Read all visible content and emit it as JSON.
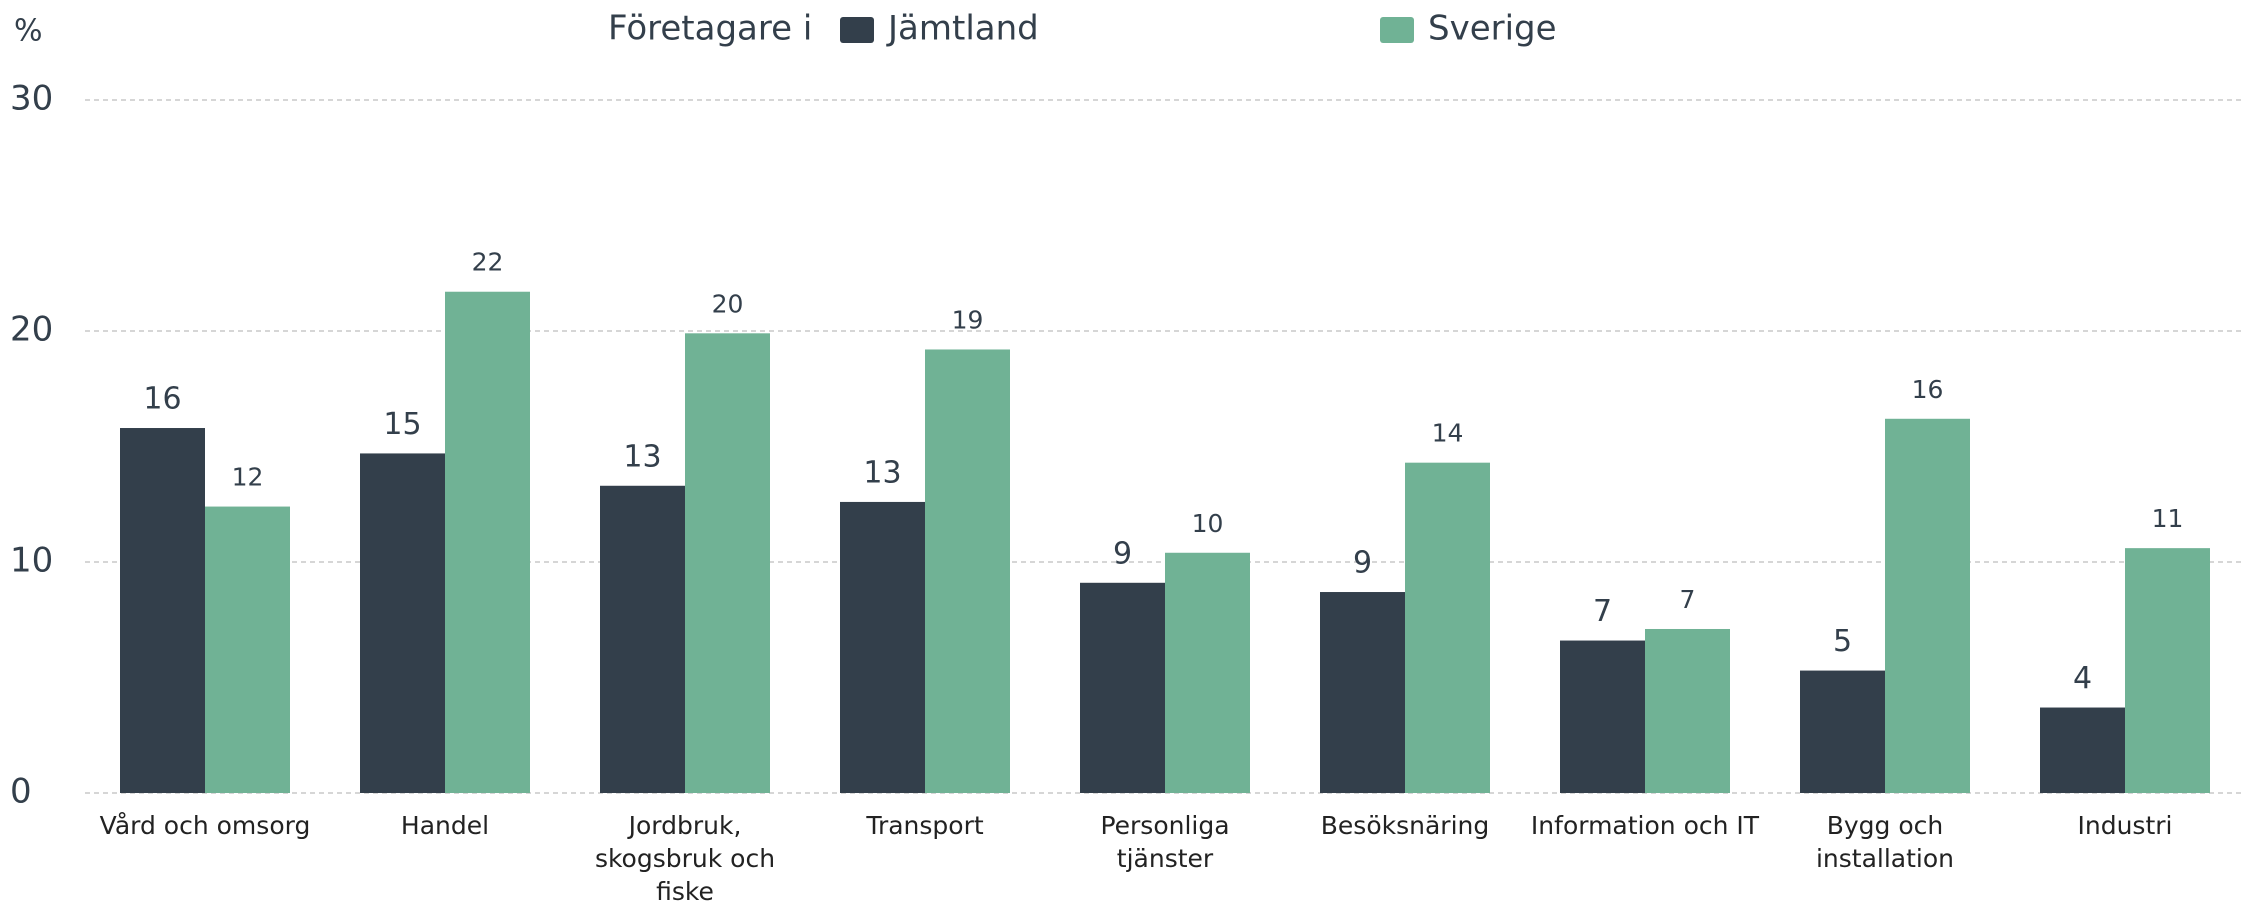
{
  "chart_data": {
    "type": "bar",
    "y_label": "%",
    "legend_title": "Företagare i",
    "categories": [
      "Vård och omsorg",
      "Handel",
      "Jordbruk, skogsbruk och fiske",
      "Transport",
      "Personliga tjänster",
      "Besöksnäring",
      "Information och IT",
      "Bygg och installation",
      "Industri"
    ],
    "series": [
      {
        "name": "Jämtland",
        "color": "#333f4b",
        "values": [
          15.8,
          14.7,
          13.3,
          12.6,
          9.1,
          8.7,
          6.6,
          5.3,
          3.7
        ],
        "value_labels": [
          "16",
          "15",
          "13",
          "13",
          "9",
          "9",
          "7",
          "5",
          "4"
        ]
      },
      {
        "name": "Sverige",
        "color": "#70b295",
        "values": [
          12.4,
          21.7,
          19.9,
          19.2,
          10.4,
          14.3,
          7.1,
          16.2,
          10.6
        ],
        "value_labels": [
          "12",
          "22",
          "20",
          "19",
          "10",
          "14",
          "7",
          "16",
          "11"
        ]
      }
    ],
    "ylim": [
      0,
      30
    ],
    "yticks": [
      0,
      10,
      20,
      30
    ],
    "grid": true
  }
}
